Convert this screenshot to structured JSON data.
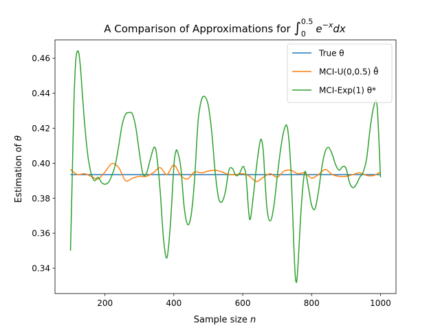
{
  "chart_data": {
    "type": "line",
    "title": "A Comparison of Approximations for ∫₀^0.5 e^(−x) dx",
    "title_parts": {
      "prefix": "A Comparison of Approximations for ",
      "integral": "∫",
      "lower": "0",
      "upper": "0.5",
      "body": "e",
      "exp": "−x",
      "suffix": "dx"
    },
    "xlabel": "Sample size n",
    "ylabel": "Estimation of θ",
    "xlabel_parts": {
      "text": "Sample size ",
      "italic": "n"
    },
    "ylabel_parts": {
      "text": "Estimation of ",
      "italic": "θ"
    },
    "xlim": [
      55,
      1045
    ],
    "ylim": [
      0.3255,
      0.4705
    ],
    "x_ticks": [
      200,
      400,
      600,
      800,
      1000
    ],
    "y_ticks": [
      0.34,
      0.36,
      0.38,
      0.4,
      0.42,
      0.44,
      0.46
    ],
    "x_tick_labels": [
      "200",
      "400",
      "600",
      "800",
      "1000"
    ],
    "y_tick_labels": [
      "0.34",
      "0.36",
      "0.38",
      "0.40",
      "0.42",
      "0.44",
      "0.46"
    ],
    "grid": false,
    "legend_position": "top-right",
    "legend": [
      {
        "label": "True θ",
        "color": "#1f77b4"
      },
      {
        "label": "MCI-U(0,0.5) θ̂",
        "color": "#ff7f0e"
      },
      {
        "label": "MCI-Exp(1) θ*",
        "color": "#2ca02c"
      }
    ],
    "series": [
      {
        "name": "True θ",
        "color": "#1f77b4",
        "x": [
          100,
          1000
        ],
        "y": [
          0.3935,
          0.3935
        ]
      },
      {
        "name": "MCI-U(0,0.5) θ̂",
        "color": "#ff7f0e",
        "x": [
          100,
          120,
          140,
          160,
          180,
          200,
          220,
          240,
          260,
          280,
          300,
          320,
          340,
          360,
          380,
          400,
          420,
          440,
          460,
          480,
          500,
          520,
          540,
          560,
          580,
          600,
          620,
          640,
          660,
          680,
          700,
          720,
          740,
          760,
          780,
          800,
          820,
          840,
          860,
          880,
          900,
          920,
          940,
          960,
          980,
          1000
        ],
        "y": [
          0.3965,
          0.3935,
          0.394,
          0.3925,
          0.391,
          0.395,
          0.3998,
          0.3975,
          0.39,
          0.3915,
          0.3925,
          0.3925,
          0.3945,
          0.3975,
          0.3935,
          0.399,
          0.393,
          0.391,
          0.395,
          0.3945,
          0.3955,
          0.396,
          0.395,
          0.3935,
          0.3935,
          0.394,
          0.3925,
          0.3895,
          0.392,
          0.394,
          0.392,
          0.3955,
          0.396,
          0.394,
          0.3945,
          0.3915,
          0.3935,
          0.3965,
          0.3935,
          0.3925,
          0.3925,
          0.3935,
          0.3945,
          0.393,
          0.393,
          0.395
        ]
      },
      {
        "name": "MCI-Exp(1) θ*",
        "color": "#2ca02c",
        "x": [
          100,
          105,
          110,
          115,
          120,
          125,
          130,
          140,
          150,
          160,
          170,
          180,
          190,
          200,
          210,
          220,
          230,
          240,
          250,
          260,
          270,
          280,
          290,
          300,
          310,
          320,
          330,
          340,
          345,
          350,
          360,
          370,
          380,
          390,
          400,
          405,
          410,
          420,
          430,
          440,
          450,
          460,
          470,
          480,
          490,
          500,
          510,
          520,
          530,
          540,
          550,
          560,
          570,
          580,
          590,
          600,
          605,
          610,
          620,
          630,
          640,
          650,
          655,
          660,
          670,
          680,
          690,
          700,
          710,
          720,
          730,
          740,
          750,
          755,
          760,
          770,
          780,
          790,
          800,
          810,
          820,
          830,
          840,
          850,
          860,
          870,
          880,
          890,
          900,
          910,
          920,
          930,
          940,
          950,
          960,
          970,
          980,
          990,
          1000
        ],
        "y": [
          0.35,
          0.392,
          0.435,
          0.458,
          0.464,
          0.462,
          0.452,
          0.425,
          0.405,
          0.394,
          0.39,
          0.392,
          0.389,
          0.388,
          0.389,
          0.393,
          0.399,
          0.41,
          0.422,
          0.428,
          0.429,
          0.428,
          0.42,
          0.406,
          0.394,
          0.394,
          0.401,
          0.408,
          0.409,
          0.405,
          0.385,
          0.357,
          0.346,
          0.365,
          0.398,
          0.406,
          0.407,
          0.398,
          0.375,
          0.365,
          0.37,
          0.39,
          0.423,
          0.436,
          0.438,
          0.433,
          0.418,
          0.395,
          0.38,
          0.378,
          0.384,
          0.396,
          0.397,
          0.393,
          0.394,
          0.398,
          0.397,
          0.392,
          0.368,
          0.38,
          0.398,
          0.412,
          0.413,
          0.406,
          0.375,
          0.367,
          0.375,
          0.392,
          0.408,
          0.419,
          0.42,
          0.396,
          0.345,
          0.332,
          0.34,
          0.375,
          0.395,
          0.387,
          0.376,
          0.374,
          0.384,
          0.398,
          0.407,
          0.409,
          0.405,
          0.399,
          0.396,
          0.398,
          0.397,
          0.389,
          0.386,
          0.388,
          0.392,
          0.395,
          0.403,
          0.42,
          0.432,
          0.433,
          0.392
        ]
      }
    ]
  }
}
